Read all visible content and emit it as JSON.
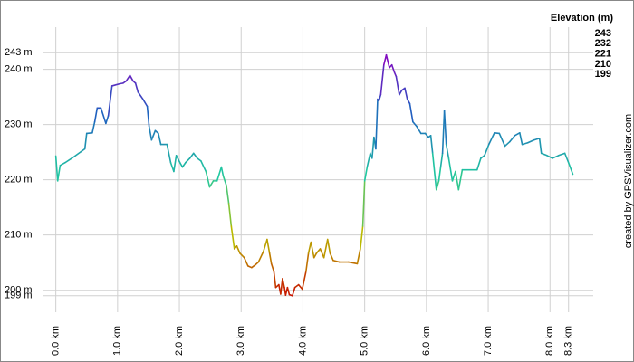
{
  "chart_data": {
    "type": "elevation-profile",
    "legend_title": "Elevation (m)",
    "legend": [
      {
        "value": 243,
        "color": "#9000c0"
      },
      {
        "value": 232,
        "color": "#1f5fc0"
      },
      {
        "value": 221,
        "color": "#20c8a0"
      },
      {
        "value": 210,
        "color": "#b8c000"
      },
      {
        "value": 199,
        "color": "#c81000"
      }
    ],
    "credit": "created by GPSVisualizer.com",
    "xlim": [
      -0.2,
      8.7
    ],
    "ylim": [
      197,
      246
    ],
    "xticks": [
      {
        "value": 0,
        "label": "0.0 km"
      },
      {
        "value": 1,
        "label": "1.0 km"
      },
      {
        "value": 2,
        "label": "2.0 km"
      },
      {
        "value": 3,
        "label": "3.0 km"
      },
      {
        "value": 4,
        "label": "4.0 km"
      },
      {
        "value": 5,
        "label": "5.0 km"
      },
      {
        "value": 6,
        "label": "6.0 km"
      },
      {
        "value": 7,
        "label": "7.0 km"
      },
      {
        "value": 8,
        "label": "8.0 km"
      },
      {
        "value": 8.3,
        "label": "8.3 km"
      }
    ],
    "yticks": [
      {
        "value": 199,
        "label": "199 m"
      },
      {
        "value": 200,
        "label": "200 m"
      },
      {
        "value": 210,
        "label": "210 m"
      },
      {
        "value": 220,
        "label": "220 m"
      },
      {
        "value": 230,
        "label": "230 m"
      },
      {
        "value": 240,
        "label": "240 m"
      },
      {
        "value": 243,
        "label": "243 m"
      }
    ],
    "grid": true,
    "series": [
      {
        "x": [
          0.0,
          0.03,
          0.07,
          0.15,
          0.26,
          0.41,
          0.47,
          0.5,
          0.59,
          0.63,
          0.67,
          0.73,
          0.81,
          0.85,
          0.91,
          1.04,
          1.09,
          1.14,
          1.2,
          1.25,
          1.29,
          1.33,
          1.41,
          1.48,
          1.51,
          1.55,
          1.61,
          1.66,
          1.7,
          1.8,
          1.86,
          1.91,
          1.95,
          2.01,
          2.05,
          2.1,
          2.17,
          2.23,
          2.29,
          2.35,
          2.43,
          2.49,
          2.55,
          2.61,
          2.68,
          2.71,
          2.76,
          2.8,
          2.84,
          2.89,
          2.93,
          2.98,
          3.05,
          3.11,
          3.17,
          3.23,
          3.28,
          3.36,
          3.42,
          3.46,
          3.49,
          3.53,
          3.56,
          3.61,
          3.64,
          3.67,
          3.7,
          3.72,
          3.75,
          3.78,
          3.83,
          3.87,
          3.93,
          3.99,
          4.05,
          4.09,
          4.13,
          4.18,
          4.22,
          4.28,
          4.34,
          4.4,
          4.44,
          4.49,
          4.59,
          4.74,
          4.88,
          4.93,
          4.97,
          5.0,
          5.04,
          5.09,
          5.12,
          5.15,
          5.18,
          5.21,
          5.23,
          5.26,
          5.31,
          5.35,
          5.4,
          5.44,
          5.48,
          5.51,
          5.56,
          5.6,
          5.65,
          5.69,
          5.73,
          5.78,
          5.84,
          5.91,
          5.98,
          6.03,
          6.07,
          6.1,
          6.16,
          6.2,
          6.23,
          6.26,
          6.29,
          6.32,
          6.36,
          6.42,
          6.47,
          6.52,
          6.58,
          6.72,
          6.82,
          6.88,
          6.94,
          7.01,
          7.1,
          7.18,
          7.27,
          7.35,
          7.43,
          7.51,
          7.55,
          7.64,
          7.74,
          7.83,
          7.86,
          7.95,
          8.04,
          8.14,
          8.24,
          8.3,
          8.37
        ],
        "values": [
          224.3,
          219.8,
          222.6,
          223.1,
          223.9,
          225.1,
          225.6,
          228.4,
          228.5,
          230.5,
          233.0,
          233.0,
          230.2,
          231.6,
          237.0,
          237.4,
          237.5,
          237.9,
          238.9,
          237.9,
          237.5,
          235.9,
          234.6,
          233.3,
          229.7,
          227.2,
          228.9,
          228.4,
          226.4,
          226.4,
          223.1,
          221.5,
          224.4,
          223.1,
          222.3,
          223.1,
          223.9,
          224.8,
          223.9,
          223.4,
          221.5,
          218.7,
          219.8,
          219.8,
          222.3,
          220.7,
          219.0,
          215.7,
          211.6,
          207.5,
          208.0,
          206.7,
          205.9,
          204.4,
          204.1,
          204.6,
          205.1,
          207.0,
          209.2,
          206.7,
          204.8,
          203.4,
          200.5,
          201.0,
          199.3,
          202.1,
          200.5,
          199.1,
          200.5,
          199.2,
          199.0,
          200.5,
          201.0,
          200.2,
          203.4,
          206.7,
          208.7,
          205.9,
          206.7,
          207.5,
          205.9,
          209.2,
          206.7,
          205.4,
          205.1,
          205.1,
          204.8,
          207.5,
          211.6,
          219.8,
          222.3,
          224.8,
          223.9,
          227.7,
          225.6,
          234.6,
          234.3,
          235.4,
          240.8,
          242.6,
          240.3,
          240.8,
          239.5,
          238.7,
          235.4,
          236.2,
          236.6,
          234.6,
          233.8,
          230.5,
          229.7,
          228.4,
          228.4,
          227.7,
          228.0,
          224.8,
          218.2,
          219.8,
          222.3,
          224.8,
          232.5,
          226.4,
          223.9,
          219.8,
          221.5,
          218.2,
          221.8,
          221.8,
          221.8,
          223.9,
          224.4,
          226.4,
          228.5,
          228.4,
          226.1,
          226.9,
          228.0,
          228.5,
          226.4,
          226.7,
          227.2,
          227.5,
          224.8,
          224.4,
          223.9,
          224.4,
          224.8,
          223.1,
          221.0
        ]
      }
    ]
  }
}
